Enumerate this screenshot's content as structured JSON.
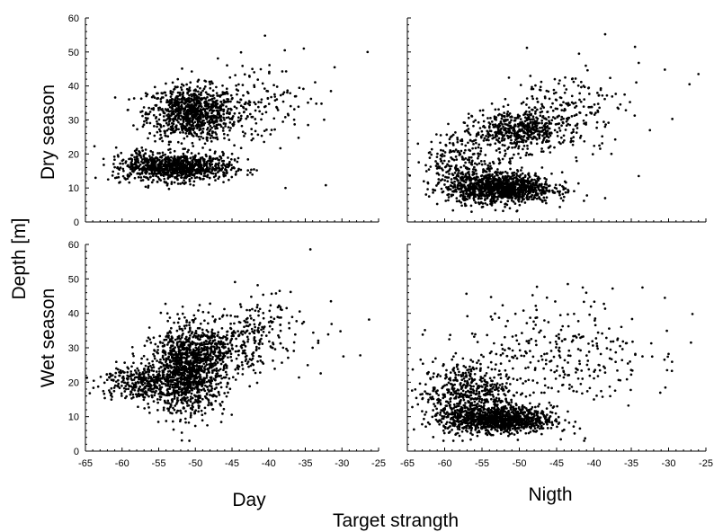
{
  "chart_data": {
    "type": "scatter",
    "ylabel": "Depth [m]",
    "xlabel": "Target strangth",
    "xlim": [
      -65,
      -25
    ],
    "ylim": [
      0,
      60
    ],
    "x_ticks": [
      -65,
      -60,
      -55,
      -50,
      -45,
      -40,
      -35,
      -30,
      -25
    ],
    "y_ticks": [
      0,
      10,
      20,
      30,
      40,
      50,
      60
    ],
    "column_labels": [
      "Day",
      "Nigth"
    ],
    "row_labels": [
      "Dry season",
      "Wet season"
    ],
    "grid": false,
    "legend": "none",
    "marker_color": "#000000",
    "panels": [
      {
        "row": "Dry season",
        "column": "Day",
        "clusters": [
          {
            "x_center": -50.5,
            "y_center": 32,
            "x_spread": 3.0,
            "y_spread": 4.0,
            "count": 900
          },
          {
            "x_center": -52,
            "y_center": 16,
            "x_spread": 3.5,
            "y_spread": 2.0,
            "count": 800
          },
          {
            "x_center": -57,
            "y_center": 17,
            "x_spread": 2.0,
            "y_spread": 2.5,
            "count": 150
          },
          {
            "x_center": -42,
            "y_center": 35,
            "x_spread": 3.5,
            "y_spread": 6.0,
            "count": 150
          }
        ],
        "points": [
          [
            -40.5,
            54.8
          ],
          [
            -37.8,
            50.5
          ],
          [
            -35.2,
            51
          ],
          [
            -31,
            45.5
          ],
          [
            -26.5,
            50
          ],
          [
            -33.5,
            34.8
          ],
          [
            -31.5,
            38.5
          ],
          [
            -32.2,
            10.8
          ],
          [
            -37.7,
            10
          ]
        ]
      },
      {
        "row": "Dry season",
        "column": "Nigth",
        "clusters": [
          {
            "x_center": -52.5,
            "y_center": 10,
            "x_spread": 3.5,
            "y_spread": 2.2,
            "count": 1100
          },
          {
            "x_center": -50,
            "y_center": 27,
            "x_spread": 3.0,
            "y_spread": 3.0,
            "count": 500
          },
          {
            "x_center": -57,
            "y_center": 17,
            "x_spread": 3.0,
            "y_spread": 5.0,
            "count": 300
          },
          {
            "x_center": -44,
            "y_center": 33,
            "x_spread": 4.0,
            "y_spread": 6.0,
            "count": 200
          }
        ],
        "points": [
          [
            -38.5,
            55.2
          ],
          [
            -34.5,
            51.5
          ],
          [
            -34,
            46.8
          ],
          [
            -30.5,
            44.8
          ],
          [
            -26,
            43.5
          ],
          [
            -27.2,
            40.5
          ],
          [
            -29.5,
            30.3
          ],
          [
            -32.5,
            27
          ],
          [
            -34,
            13.5
          ],
          [
            -38.5,
            7
          ],
          [
            -42,
            49.5
          ]
        ]
      },
      {
        "row": "Wet season",
        "column": "Day",
        "clusters": [
          {
            "x_center": -51,
            "y_center": 23,
            "x_spread": 2.5,
            "y_spread": 6.0,
            "count": 1200
          },
          {
            "x_center": -58,
            "y_center": 20,
            "x_spread": 2.5,
            "y_spread": 2.5,
            "count": 300
          },
          {
            "x_center": -47,
            "y_center": 30,
            "x_spread": 3.0,
            "y_spread": 4.0,
            "count": 300
          },
          {
            "x_center": -41,
            "y_center": 35,
            "x_spread": 3.5,
            "y_spread": 5.5,
            "count": 150
          }
        ],
        "points": [
          [
            -38.5,
            46.5
          ],
          [
            -37,
            46.2
          ],
          [
            -35.2,
            37.5
          ],
          [
            -31.5,
            43.5
          ],
          [
            -30.2,
            34.8
          ],
          [
            -29.8,
            27.5
          ],
          [
            -27.5,
            27.8
          ],
          [
            -26.3,
            38.2
          ],
          [
            -34,
            30
          ]
        ]
      },
      {
        "row": "Wet season",
        "column": "Nigth",
        "clusters": [
          {
            "x_center": -52.5,
            "y_center": 9,
            "x_spread": 3.5,
            "y_spread": 1.8,
            "count": 1000
          },
          {
            "x_center": -57,
            "y_center": 16,
            "x_spread": 3.0,
            "y_spread": 5.0,
            "count": 600
          },
          {
            "x_center": -45,
            "y_center": 28,
            "x_spread": 6.0,
            "y_spread": 8.0,
            "count": 300
          }
        ],
        "points": [
          [
            -43.5,
            48.5
          ],
          [
            -41.5,
            47.5
          ],
          [
            -37.5,
            47.2
          ],
          [
            -33.5,
            47.5
          ],
          [
            -30.5,
            44.5
          ],
          [
            -26.8,
            39.8
          ],
          [
            -27,
            31.5
          ],
          [
            -30,
            28.2
          ],
          [
            -30.2,
            23.5
          ],
          [
            -33.5,
            27.5
          ],
          [
            -36.5,
            30.5
          ],
          [
            -40,
            15
          ],
          [
            -43.5,
            11.5
          ],
          [
            -44,
            6.2
          ]
        ]
      }
    ]
  }
}
